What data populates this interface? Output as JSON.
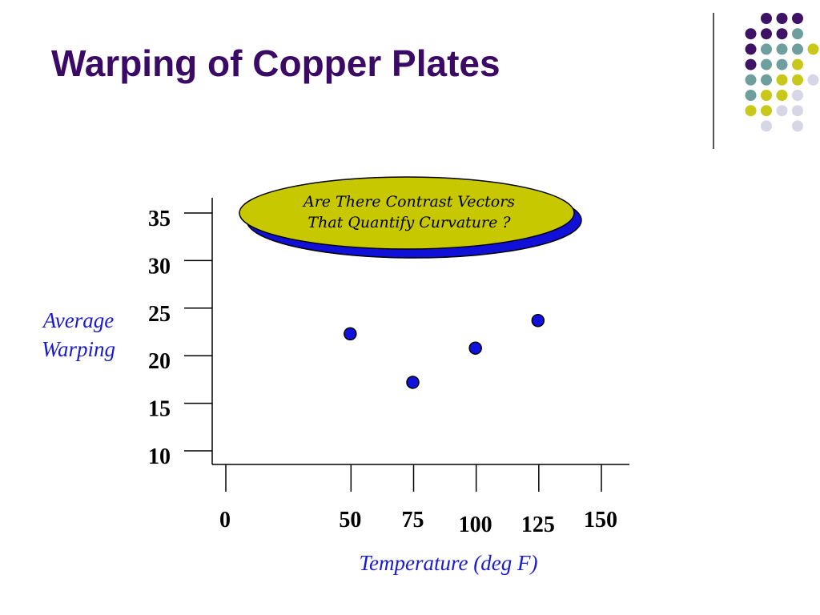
{
  "slide": {
    "title": "Warping of Copper Plates"
  },
  "callout": {
    "line1": "Are There Contrast Vectors",
    "line2": "That Quantify Curvature ?",
    "fill_color": "#c8c800",
    "shadow_color": "#1010d8"
  },
  "decor": {
    "dot_colors": {
      "P": "#3e1366",
      "T": "#6f9e9e",
      "Y": "#c8c81a",
      "L": "#d6d6e6"
    },
    "dot_rows": [
      "..PPP.",
      ".PPPT.",
      ".PTTTY",
      ".PTTY.",
      ".TTYYL",
      ".TYYL.",
      ".YYLL.",
      "..L.L."
    ]
  },
  "chart_data": {
    "type": "scatter",
    "xlabel": "Temperature (deg F)",
    "ylabel_lines": [
      "Average",
      "Warping"
    ],
    "x_ticks": [
      {
        "value": 0,
        "label": "0"
      },
      {
        "value": 50,
        "label": "50"
      },
      {
        "value": 75,
        "label": "75"
      },
      {
        "value": 100,
        "label": "100"
      },
      {
        "value": 125,
        "label": "125"
      },
      {
        "value": 150,
        "label": "150"
      }
    ],
    "y_ticks": [
      10,
      15,
      20,
      25,
      30,
      35
    ],
    "ylim": [
      10,
      35
    ],
    "points": [
      {
        "x": 50,
        "y": 22.3
      },
      {
        "x": 75,
        "y": 17.2
      },
      {
        "x": 100,
        "y": 20.8
      },
      {
        "x": 125,
        "y": 23.7
      }
    ],
    "marker_color": "#1010e0",
    "grid": false
  }
}
